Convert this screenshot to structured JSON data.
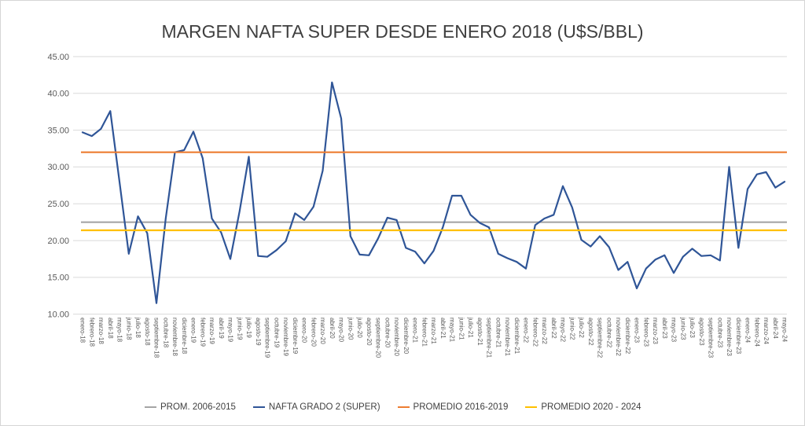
{
  "chart_data": {
    "type": "line",
    "title": "MARGEN NAFTA SUPER DESDE ENERO 2018 (U$S/BBL)",
    "categories": [
      "enero-18",
      "febrero-18",
      "marzo-18",
      "abril-18",
      "mayo-18",
      "junio-18",
      "julio-18",
      "agosto-18",
      "septiembre-18",
      "octubre-18",
      "noviembre-18",
      "diciembre-18",
      "enero-19",
      "febrero-19",
      "marzo-19",
      "abril-19",
      "mayo-19",
      "junio-19",
      "julio-19",
      "agosto-19",
      "septiembre-19",
      "octubre-19",
      "noviembre-19",
      "diciembre-19",
      "enero-20",
      "febrero-20",
      "marzo-20",
      "abril-20",
      "mayo-20",
      "junio-20",
      "julio-20",
      "agosto-20",
      "septiembre-20",
      "octubre-20",
      "noviembre-20",
      "diciembre-20",
      "enero-21",
      "febrero-21",
      "marzo-21",
      "abril-21",
      "mayo-21",
      "junio-21",
      "julio-21",
      "agosto-21",
      "septiembre-21",
      "octubre-21",
      "noviembre-21",
      "diciembre-21",
      "enero-22",
      "febrero-22",
      "marzo-22",
      "abril-22",
      "mayo-22",
      "junio-22",
      "julio-22",
      "agosto-22",
      "septiembre-22",
      "octubre-22",
      "noviembre-22",
      "diciembre-22",
      "enero-23",
      "febrero-23",
      "marzo-23",
      "abril-23",
      "mayo-23",
      "junio-23",
      "julio-23",
      "agosto-23",
      "septiembre-23",
      "octubre-23",
      "noviembre-23",
      "diciembre-23",
      "enero-24",
      "febrero-24",
      "marzo-24",
      "abril-24",
      "mayo-24"
    ],
    "series": [
      {
        "name": "PROM. 2006-2015",
        "color": "#A5A5A5",
        "constant": 22.5
      },
      {
        "name": "NAFTA GRADO 2 (SUPER)",
        "color": "#2F5597",
        "values": [
          34.7,
          34.2,
          35.2,
          37.6,
          28.0,
          18.2,
          23.3,
          21.0,
          11.5,
          23.0,
          32.0,
          32.3,
          34.8,
          31.2,
          23.0,
          21.1,
          17.5,
          24.0,
          31.4,
          17.9,
          17.8,
          18.7,
          19.9,
          23.7,
          22.8,
          24.6,
          29.5,
          41.5,
          36.6,
          20.6,
          18.1,
          18.0,
          20.3,
          23.1,
          22.8,
          19.0,
          18.5,
          16.9,
          18.6,
          21.8,
          26.1,
          26.1,
          23.5,
          22.4,
          21.8,
          18.2,
          17.6,
          17.1,
          16.2,
          22.1,
          23.0,
          23.5,
          27.4,
          24.5,
          20.1,
          19.2,
          20.6,
          19.1,
          16.0,
          17.1,
          13.5,
          16.2,
          17.4,
          18.0,
          15.6,
          17.8,
          18.9,
          17.9,
          18.0,
          17.3,
          30.0,
          19.0,
          27.0,
          29.0,
          29.3,
          27.2,
          28.0
        ]
      },
      {
        "name": "PROMEDIO 2016-2019",
        "color": "#ED7D31",
        "constant": 32.0
      },
      {
        "name": "PROMEDIO 2020 - 2024",
        "color": "#FFC000",
        "constant": 21.4
      }
    ],
    "ylim": [
      10,
      45
    ],
    "ytick_step": 5,
    "ytick_decimals": 2,
    "grid": "horizontal",
    "legend_position": "bottom",
    "axis_text_color": "#595959",
    "gridline_color": "#D9D9D9"
  }
}
